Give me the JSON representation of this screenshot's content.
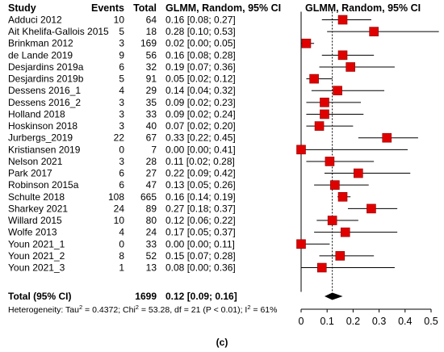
{
  "chart_data": {
    "type": "forest",
    "headers": {
      "study": "Study",
      "events": "Events",
      "total": "Total",
      "ci": "GLMM, Random, 95% CI",
      "plot": "GLMM, Random, 95% CI"
    },
    "studies": [
      {
        "name": "Adduci 2012",
        "events": "10",
        "total": "64",
        "ci_text": "0.16 [0.08; 0.27]",
        "est": 0.16,
        "lo": 0.08,
        "hi": 0.27
      },
      {
        "name": "Ait Khelifa-Gallois 2015",
        "events": "5",
        "total": "18",
        "ci_text": "0.28 [0.10; 0.53]",
        "est": 0.28,
        "lo": 0.1,
        "hi": 0.53
      },
      {
        "name": "Brinkman 2012",
        "events": "3",
        "total": "169",
        "ci_text": "0.02 [0.00; 0.05]",
        "est": 0.02,
        "lo": 0.0,
        "hi": 0.05
      },
      {
        "name": "de Lande 2019",
        "events": "9",
        "total": "56",
        "ci_text": "0.16 [0.08; 0.28]",
        "est": 0.16,
        "lo": 0.08,
        "hi": 0.28
      },
      {
        "name": "Desjardins 2019a",
        "events": "6",
        "total": "32",
        "ci_text": "0.19 [0.07; 0.36]",
        "est": 0.19,
        "lo": 0.07,
        "hi": 0.36
      },
      {
        "name": "Desjardins 2019b",
        "events": "5",
        "total": "91",
        "ci_text": "0.05 [0.02; 0.12]",
        "est": 0.05,
        "lo": 0.02,
        "hi": 0.12
      },
      {
        "name": "Dessens 2016_1",
        "events": "4",
        "total": "29",
        "ci_text": "0.14 [0.04; 0.32]",
        "est": 0.14,
        "lo": 0.04,
        "hi": 0.32
      },
      {
        "name": "Dessens 2016_2",
        "events": "3",
        "total": "35",
        "ci_text": "0.09 [0.02; 0.23]",
        "est": 0.09,
        "lo": 0.02,
        "hi": 0.23
      },
      {
        "name": "Holland 2018",
        "events": "3",
        "total": "33",
        "ci_text": "0.09 [0.02; 0.24]",
        "est": 0.09,
        "lo": 0.02,
        "hi": 0.24
      },
      {
        "name": "Hoskinson 2018",
        "events": "3",
        "total": "40",
        "ci_text": "0.07 [0.02; 0.20]",
        "est": 0.07,
        "lo": 0.02,
        "hi": 0.2
      },
      {
        "name": "Jurbergs_2019",
        "events": "22",
        "total": "67",
        "ci_text": "0.33 [0.22; 0.45]",
        "est": 0.33,
        "lo": 0.22,
        "hi": 0.45
      },
      {
        "name": "Kristiansen 2019",
        "events": "0",
        "total": "7",
        "ci_text": "0.00 [0.00; 0.41]",
        "est": 0.0,
        "lo": 0.0,
        "hi": 0.41
      },
      {
        "name": "Nelson 2021",
        "events": "3",
        "total": "28",
        "ci_text": "0.11 [0.02; 0.28]",
        "est": 0.11,
        "lo": 0.02,
        "hi": 0.28
      },
      {
        "name": "Park 2017",
        "events": "6",
        "total": "27",
        "ci_text": "0.22 [0.09; 0.42]",
        "est": 0.22,
        "lo": 0.09,
        "hi": 0.42
      },
      {
        "name": "Robinson 2015a",
        "events": "6",
        "total": "47",
        "ci_text": "0.13 [0.05; 0.26]",
        "est": 0.13,
        "lo": 0.05,
        "hi": 0.26
      },
      {
        "name": "Schulte 2018",
        "events": "108",
        "total": "665",
        "ci_text": "0.16 [0.14; 0.19]",
        "est": 0.16,
        "lo": 0.14,
        "hi": 0.19
      },
      {
        "name": "Sharkey 2021",
        "events": "24",
        "total": "89",
        "ci_text": "0.27 [0.18; 0.37]",
        "est": 0.27,
        "lo": 0.18,
        "hi": 0.37
      },
      {
        "name": "Willard 2015",
        "events": "10",
        "total": "80",
        "ci_text": "0.12 [0.06; 0.22]",
        "est": 0.12,
        "lo": 0.06,
        "hi": 0.22
      },
      {
        "name": "Wolfe 2013",
        "events": "4",
        "total": "24",
        "ci_text": "0.17 [0.05; 0.37]",
        "est": 0.17,
        "lo": 0.05,
        "hi": 0.37
      },
      {
        "name": "Youn 2021_1",
        "events": "0",
        "total": "33",
        "ci_text": "0.00 [0.00; 0.11]",
        "est": 0.0,
        "lo": 0.0,
        "hi": 0.11
      },
      {
        "name": "Youn 2021_2",
        "events": "8",
        "total": "52",
        "ci_text": "0.15 [0.07; 0.28]",
        "est": 0.15,
        "lo": 0.07,
        "hi": 0.28
      },
      {
        "name": "Youn 2021_3",
        "events": "1",
        "total": "13",
        "ci_text": "0.08 [0.00; 0.36]",
        "est": 0.08,
        "lo": 0.0,
        "hi": 0.36
      }
    ],
    "pooled": {
      "name": "Total (95% CI)",
      "total": "1699",
      "ci_text": "0.12 [0.09; 0.16]",
      "est": 0.12,
      "lo": 0.09,
      "hi": 0.16
    },
    "heterogeneity_prefix": "Heterogeneity: Tau",
    "heterogeneity_mid": " = 0.4372; Chi",
    "heterogeneity_suffix": " = 53.28, df = 21 (P < 0.01); I",
    "heterogeneity_end": " = 61%",
    "superscript": "2",
    "x_ticks": [
      "0",
      "0.1",
      "0.2",
      "0.3",
      "0.4",
      "0.5"
    ],
    "xlim": [
      0,
      0.5
    ],
    "reference_line": 0,
    "pooled_line": 0.12,
    "marker_color": "#e00000",
    "caption": "(c)"
  }
}
